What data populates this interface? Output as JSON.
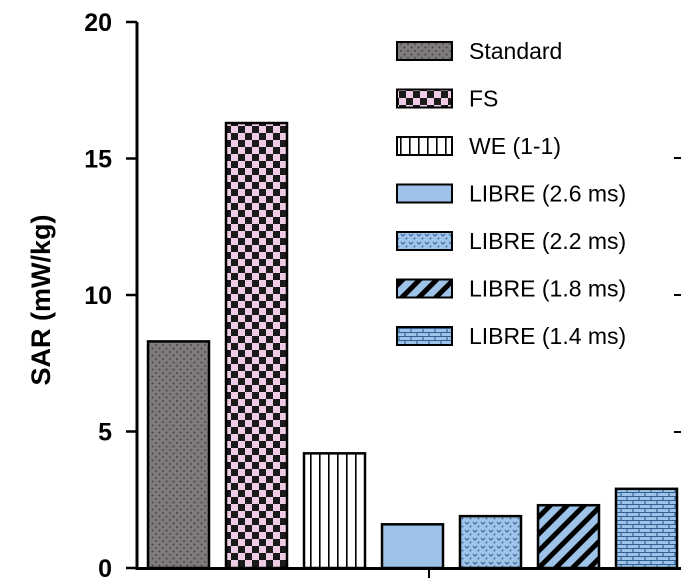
{
  "chart_data": {
    "type": "bar",
    "ylabel": "SAR  (mW/kg)",
    "xlabel": "",
    "ylim": [
      0,
      20
    ],
    "yticks": [
      "0",
      "5",
      "10",
      "15",
      "20"
    ],
    "categories": [
      "Standard",
      "FS",
      "WE (1-1)",
      "LIBRE (2.6 ms)",
      "LIBRE (2.2 ms)",
      "LIBRE (1.8 ms)",
      "LIBRE (1.4 ms)"
    ],
    "values": [
      8.3,
      16.3,
      4.2,
      1.6,
      1.9,
      2.3,
      2.9
    ],
    "legend": {
      "placement": "top-right",
      "entries": [
        "Standard",
        "FS",
        "WE (1-1)",
        "LIBRE (2.6 ms)",
        "LIBRE (2.2 ms)",
        "LIBRE (1.8 ms)",
        "LIBRE (1.4 ms)"
      ]
    },
    "grid": false,
    "bar_styles": [
      {
        "fill": "#7f7b7c",
        "pattern": "dots",
        "pattern_color": "#4a4647"
      },
      {
        "fill": "#eecce6",
        "pattern": "checker",
        "pattern_color": "#1a1a1a"
      },
      {
        "fill": "#ffffff",
        "pattern": "vertical-lines",
        "pattern_color": "#000000"
      },
      {
        "fill": "#9ec3e8",
        "pattern": "solid",
        "pattern_color": "#9ec3e8"
      },
      {
        "fill": "#9ec3e8",
        "pattern": "speckle",
        "pattern_color": "#2f5f93"
      },
      {
        "fill": "#9ec3e8",
        "pattern": "diagonal",
        "pattern_color": "#000000"
      },
      {
        "fill": "#9ec3e8",
        "pattern": "brick",
        "pattern_color": "#2f5f93"
      }
    ]
  }
}
